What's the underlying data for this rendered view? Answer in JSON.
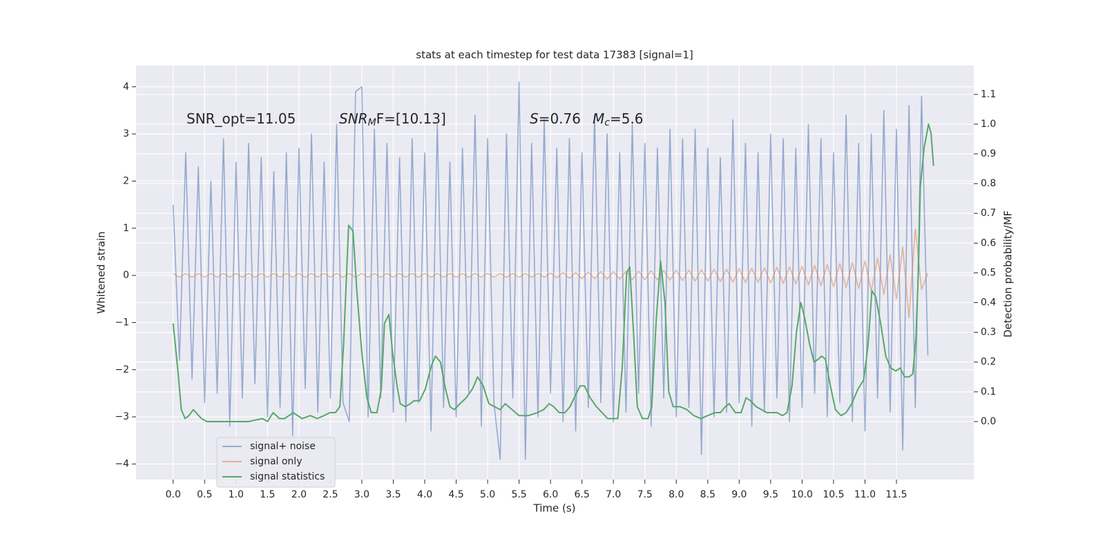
{
  "chart_data": {
    "type": "line",
    "title": "stats at each timestep for test data 17383 [signal=1]",
    "xlabel": "Time (s)",
    "ylabel": "Whitened strain",
    "y2label": "Detection probability/MF",
    "annotations": [
      {
        "text": "SNR_opt=11.05"
      },
      {
        "base": "SNR",
        "sub": "M",
        "tail": "F=[10.13]"
      },
      {
        "base": "S",
        "tail": "=0.76"
      },
      {
        "base": "M",
        "sub": "c",
        "tail": "=5.6"
      }
    ],
    "grid": true,
    "legend": "lower left",
    "xlim": [
      -0.59,
      12.73
    ],
    "ylim": [
      -4.33,
      4.45
    ],
    "y2lim": [
      -0.195,
      1.197
    ],
    "xticks": [
      {
        "value": 0,
        "label": "0.0"
      },
      0.5,
      {
        "value": 1,
        "label": "1.0"
      },
      1.5,
      {
        "value": 2,
        "label": "2.0"
      },
      2.5,
      {
        "value": 3,
        "label": "3.0"
      },
      3.5,
      {
        "value": 4,
        "label": "4.0"
      },
      4.5,
      {
        "value": 5,
        "label": "5.0"
      },
      5.5,
      {
        "value": 6,
        "label": "6.0"
      },
      6.5,
      {
        "value": 7,
        "label": "7.0"
      },
      7.5,
      {
        "value": 8,
        "label": "8.0"
      },
      8.5,
      {
        "value": 9,
        "label": "9.0"
      },
      9.5,
      {
        "value": 10,
        "label": "10.0"
      },
      10.5,
      {
        "value": 11,
        "label": "11.0"
      },
      11.5
    ],
    "yticks": [
      {
        "value": -4,
        "label": "−4"
      },
      {
        "value": -3,
        "label": "−3"
      },
      {
        "value": -2,
        "label": "−2"
      },
      {
        "value": -1,
        "label": "−1"
      },
      0,
      1,
      2,
      3,
      4
    ],
    "y2ticks": [
      {
        "value": 0,
        "label": "0.0"
      },
      0.1,
      0.2,
      0.3,
      0.4,
      0.5,
      0.6,
      0.7,
      0.8,
      0.9,
      {
        "value": 1,
        "label": "1.0"
      },
      1.1
    ],
    "x": [
      0,
      0.1,
      0.2,
      0.3,
      0.4,
      0.5,
      0.6,
      0.7,
      0.8,
      0.9,
      1,
      1.1,
      1.2,
      1.3,
      1.4,
      1.5,
      1.6,
      1.7,
      1.8,
      1.9,
      2,
      2.1,
      2.2,
      2.3,
      2.4,
      2.5,
      2.6,
      2.7,
      2.8,
      2.9,
      3,
      3.1,
      3.2,
      3.3,
      3.4,
      3.5,
      3.6,
      3.7,
      3.8,
      3.9,
      4,
      4.1,
      4.2,
      4.3,
      4.4,
      4.5,
      4.6,
      4.7,
      4.8,
      4.9,
      5,
      5.1,
      5.2,
      5.3,
      5.4,
      5.5,
      5.6,
      5.7,
      5.8,
      5.9,
      6,
      6.1,
      6.2,
      6.3,
      6.4,
      6.5,
      6.6,
      6.7,
      6.8,
      6.9,
      7,
      7.1,
      7.2,
      7.3,
      7.4,
      7.5,
      7.6,
      7.7,
      7.8,
      7.9,
      8,
      8.1,
      8.2,
      8.3,
      8.4,
      8.5,
      8.6,
      8.7,
      8.8,
      8.9,
      9,
      9.1,
      9.2,
      9.3,
      9.4,
      9.5,
      9.6,
      9.7,
      9.8,
      9.9,
      10,
      10.1,
      10.2,
      10.3,
      10.4,
      10.5,
      10.6,
      10.7,
      10.8,
      10.9,
      11,
      11.1,
      11.2,
      11.3,
      11.4,
      11.5,
      11.6,
      11.7,
      11.8,
      11.9,
      12
    ],
    "series": [
      {
        "name": "signal+ noise",
        "color": "#4c72b0",
        "values": [
          1.5,
          -1.8,
          2.6,
          -2.2,
          2.3,
          -2.7,
          2.0,
          -2.5,
          2.9,
          -3.2,
          2.4,
          -2.6,
          2.8,
          -2.3,
          2.5,
          -3.0,
          2.2,
          -2.8,
          2.6,
          -3.4,
          2.7,
          -2.4,
          3.0,
          -2.9,
          2.4,
          -2.6,
          3.2,
          -2.7,
          -3.1,
          3.9,
          4.0,
          -3.0,
          3.1,
          -2.6,
          2.8,
          -2.9,
          2.5,
          -3.1,
          2.9,
          -2.7,
          2.6,
          -3.3,
          3.2,
          -2.8,
          2.4,
          -3.0,
          2.7,
          -2.5,
          3.4,
          -3.2,
          2.9,
          -2.7,
          -3.9,
          3.0,
          -2.6,
          4.1,
          -3.9,
          2.8,
          -3.0,
          3.3,
          -2.5,
          2.7,
          -3.1,
          2.9,
          -3.3,
          2.6,
          -2.8,
          3.4,
          -2.7,
          3.0,
          -3.1,
          2.6,
          -2.9,
          3.2,
          -2.5,
          2.8,
          -3.2,
          2.7,
          -2.6,
          3.1,
          -3.0,
          2.9,
          -2.8,
          3.1,
          -3.8,
          2.7,
          -3.0,
          2.5,
          -2.9,
          3.3,
          -2.7,
          2.8,
          -3.2,
          2.6,
          -2.9,
          3.0,
          -2.6,
          2.9,
          -3.1,
          2.7,
          -2.8,
          3.2,
          -2.5,
          2.9,
          -3.0,
          2.6,
          -2.7,
          3.4,
          -3.1,
          2.8,
          -3.3,
          3.0,
          -2.6,
          3.5,
          -2.9,
          3.1,
          -3.7,
          3.6,
          -2.8,
          3.8,
          -1.7
        ]
      },
      {
        "name": "signal only",
        "color": "#dd8452",
        "values": [
          0.04,
          -0.04,
          0.04,
          -0.04,
          0.04,
          -0.04,
          0.04,
          -0.04,
          0.04,
          -0.04,
          0.04,
          -0.04,
          0.04,
          -0.04,
          0.04,
          -0.04,
          0.04,
          -0.04,
          0.04,
          -0.04,
          0.04,
          -0.04,
          0.04,
          -0.04,
          0.04,
          -0.04,
          0.04,
          -0.04,
          0.04,
          -0.04,
          0.04,
          -0.04,
          0.04,
          -0.04,
          0.04,
          -0.04,
          0.04,
          -0.04,
          0.04,
          -0.04,
          0.04,
          -0.04,
          0.04,
          -0.04,
          0.04,
          -0.04,
          0.04,
          -0.04,
          0.04,
          -0.04,
          0.04,
          -0.04,
          0.04,
          -0.04,
          0.04,
          -0.04,
          0.04,
          -0.04,
          0.04,
          -0.04,
          0.05,
          -0.05,
          0.06,
          -0.06,
          0.06,
          -0.07,
          0.07,
          -0.07,
          0.08,
          -0.08,
          0.08,
          -0.08,
          0.09,
          -0.09,
          0.09,
          -0.09,
          0.1,
          -0.1,
          0.1,
          -0.1,
          0.11,
          -0.11,
          0.11,
          -0.12,
          0.12,
          -0.12,
          0.13,
          -0.13,
          0.13,
          -0.14,
          0.14,
          -0.15,
          0.15,
          -0.15,
          0.16,
          -0.16,
          0.17,
          -0.17,
          0.18,
          -0.18,
          0.19,
          -0.2,
          0.21,
          -0.22,
          0.23,
          -0.24,
          0.25,
          -0.26,
          0.27,
          -0.28,
          0.3,
          -0.33,
          0.36,
          -0.4,
          0.44,
          -0.5,
          0.6,
          -0.9,
          1.0,
          -0.3,
          0.05
        ]
      },
      {
        "name": "signal statistics",
        "color": "#55a868",
        "axis": "y2",
        "x": [
          0,
          0.08,
          0.13,
          0.19,
          0.25,
          0.32,
          0.45,
          0.54,
          0.76,
          0.98,
          1.2,
          1.42,
          1.5,
          1.59,
          1.69,
          1.77,
          1.91,
          2.05,
          2.18,
          2.29,
          2.4,
          2.49,
          2.58,
          2.65,
          2.71,
          2.79,
          2.86,
          2.92,
          3.0,
          3.08,
          3.15,
          3.24,
          3.31,
          3.36,
          3.43,
          3.49,
          3.56,
          3.61,
          3.69,
          3.77,
          3.83,
          3.92,
          4.01,
          4.11,
          4.17,
          4.25,
          4.33,
          4.4,
          4.47,
          4.56,
          4.66,
          4.76,
          4.84,
          4.93,
          5.02,
          5.11,
          5.2,
          5.28,
          5.39,
          5.5,
          5.65,
          5.79,
          5.89,
          5.98,
          6.05,
          6.14,
          6.23,
          6.31,
          6.4,
          6.47,
          6.54,
          6.63,
          6.73,
          6.82,
          6.91,
          7.0,
          7.07,
          7.14,
          7.21,
          7.26,
          7.32,
          7.38,
          7.46,
          7.55,
          7.61,
          7.68,
          7.75,
          7.82,
          7.88,
          7.95,
          8.06,
          8.17,
          8.28,
          8.39,
          8.5,
          8.61,
          8.7,
          8.78,
          8.84,
          8.94,
          9.03,
          9.11,
          9.18,
          9.27,
          9.44,
          9.6,
          9.69,
          9.76,
          9.84,
          9.91,
          9.98,
          10.04,
          10.12,
          10.19,
          10.26,
          10.31,
          10.37,
          10.45,
          10.53,
          10.62,
          10.7,
          10.79,
          10.89,
          10.98,
          11.05,
          11.11,
          11.17,
          11.25,
          11.33,
          11.41,
          11.49,
          11.56,
          11.63,
          11.7,
          11.76,
          11.81,
          11.85,
          11.88,
          11.94,
          12.01,
          12.05,
          12.09
        ],
        "values": [
          0.33,
          0.16,
          0.04,
          0.01,
          0.02,
          0.04,
          0.01,
          0,
          0,
          0,
          0,
          0.01,
          0,
          0.03,
          0.01,
          0.01,
          0.03,
          0.01,
          0.02,
          0.01,
          0.02,
          0.03,
          0.03,
          0.05,
          0.26,
          0.66,
          0.64,
          0.44,
          0.23,
          0.08,
          0.03,
          0.03,
          0.11,
          0.33,
          0.36,
          0.23,
          0.12,
          0.06,
          0.05,
          0.06,
          0.07,
          0.07,
          0.11,
          0.19,
          0.22,
          0.2,
          0.11,
          0.05,
          0.04,
          0.06,
          0.08,
          0.11,
          0.15,
          0.12,
          0.06,
          0.05,
          0.04,
          0.06,
          0.04,
          0.02,
          0.02,
          0.03,
          0.04,
          0.06,
          0.05,
          0.03,
          0.03,
          0.05,
          0.09,
          0.12,
          0.12,
          0.08,
          0.05,
          0.03,
          0.01,
          0.01,
          0.01,
          0.18,
          0.5,
          0.52,
          0.3,
          0.05,
          0.01,
          0.01,
          0.05,
          0.34,
          0.54,
          0.4,
          0.1,
          0.05,
          0.05,
          0.04,
          0.02,
          0.01,
          0.02,
          0.03,
          0.03,
          0.05,
          0.06,
          0.03,
          0.03,
          0.08,
          0.07,
          0.05,
          0.03,
          0.03,
          0.02,
          0.03,
          0.12,
          0.3,
          0.4,
          0.35,
          0.26,
          0.2,
          0.21,
          0.22,
          0.21,
          0.12,
          0.04,
          0.02,
          0.03,
          0.06,
          0.11,
          0.14,
          0.26,
          0.44,
          0.42,
          0.33,
          0.22,
          0.18,
          0.17,
          0.18,
          0.15,
          0.15,
          0.16,
          0.28,
          0.51,
          0.79,
          0.92,
          1.0,
          0.97,
          0.86
        ]
      }
    ]
  }
}
